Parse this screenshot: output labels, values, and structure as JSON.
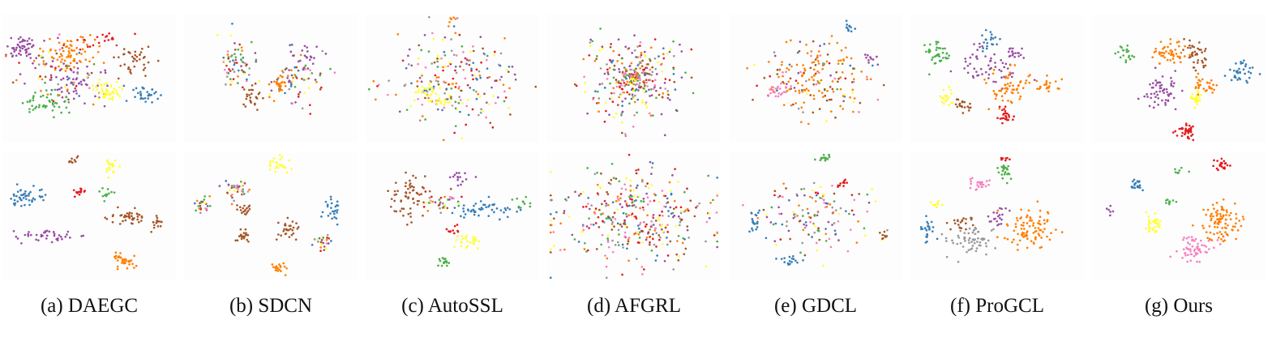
{
  "chart_data": {
    "type": "scatter",
    "title": "",
    "xlabel": "",
    "ylabel": "",
    "grid": false,
    "legend": "none",
    "rows": 2,
    "palette": [
      "#e41a1c",
      "#377eb8",
      "#4daf4a",
      "#984ea3",
      "#ff7f00",
      "#ffff33",
      "#a65628",
      "#f781bf",
      "#999999"
    ],
    "methods": [
      {
        "caption": "(a) DAEGC",
        "top": [
          [
            0.12,
            0.25,
            0.1,
            0.08,
            3,
            55
          ],
          [
            0.38,
            0.3,
            0.14,
            0.12,
            4,
            70
          ],
          [
            0.45,
            0.55,
            0.18,
            0.15,
            3,
            60
          ],
          [
            0.25,
            0.7,
            0.12,
            0.1,
            2,
            45
          ],
          [
            0.6,
            0.6,
            0.07,
            0.07,
            5,
            45
          ],
          [
            0.82,
            0.62,
            0.07,
            0.06,
            1,
            30
          ],
          [
            0.75,
            0.35,
            0.12,
            0.1,
            6,
            40
          ],
          [
            0.55,
            0.2,
            0.15,
            0.08,
            0,
            20
          ],
          [
            0.3,
            0.45,
            0.25,
            0.2,
            9,
            60
          ]
        ],
        "bottom": [
          [
            0.62,
            0.1,
            0.04,
            0.06,
            5,
            20
          ],
          [
            0.7,
            0.85,
            0.07,
            0.05,
            4,
            35
          ],
          [
            0.25,
            0.65,
            0.15,
            0.05,
            3,
            40
          ],
          [
            0.15,
            0.35,
            0.1,
            0.06,
            1,
            45
          ],
          [
            0.72,
            0.5,
            0.1,
            0.05,
            6,
            40
          ],
          [
            0.45,
            0.3,
            0.04,
            0.03,
            0,
            15
          ],
          [
            0.6,
            0.32,
            0.04,
            0.04,
            2,
            12
          ],
          [
            0.4,
            0.05,
            0.03,
            0.03,
            6,
            10
          ],
          [
            0.88,
            0.55,
            0.04,
            0.05,
            6,
            15
          ]
        ]
      },
      {
        "caption": "(b) SDCN",
        "top": [
          [
            0.3,
            0.4,
            0.12,
            0.18,
            9,
            70
          ],
          [
            0.65,
            0.5,
            0.14,
            0.2,
            9,
            70
          ],
          [
            0.4,
            0.65,
            0.06,
            0.1,
            6,
            25
          ],
          [
            0.7,
            0.35,
            0.06,
            0.1,
            3,
            20
          ],
          [
            0.55,
            0.55,
            0.05,
            0.08,
            4,
            25
          ]
        ],
        "bottom": [
          [
            0.55,
            0.1,
            0.06,
            0.06,
            5,
            25
          ],
          [
            0.3,
            0.3,
            0.08,
            0.08,
            9,
            40
          ],
          [
            0.1,
            0.4,
            0.05,
            0.06,
            9,
            25
          ],
          [
            0.35,
            0.65,
            0.05,
            0.06,
            6,
            20
          ],
          [
            0.6,
            0.6,
            0.06,
            0.06,
            6,
            30
          ],
          [
            0.85,
            0.45,
            0.06,
            0.07,
            1,
            25
          ],
          [
            0.8,
            0.7,
            0.05,
            0.07,
            9,
            25
          ],
          [
            0.55,
            0.9,
            0.04,
            0.04,
            4,
            18
          ],
          [
            0.35,
            0.45,
            0.04,
            0.04,
            6,
            18
          ]
        ]
      },
      {
        "caption": "(c) AutoSSL",
        "top": [
          [
            0.5,
            0.5,
            0.32,
            0.34,
            9,
            220
          ],
          [
            0.35,
            0.6,
            0.06,
            0.06,
            5,
            20
          ],
          [
            0.42,
            0.68,
            0.05,
            0.05,
            5,
            15
          ],
          [
            0.5,
            0.05,
            0.02,
            0.04,
            4,
            6
          ]
        ],
        "bottom": [
          [
            0.25,
            0.35,
            0.1,
            0.18,
            6,
            60
          ],
          [
            0.7,
            0.45,
            0.2,
            0.06,
            1,
            50
          ],
          [
            0.55,
            0.2,
            0.06,
            0.05,
            3,
            15
          ],
          [
            0.6,
            0.7,
            0.08,
            0.05,
            5,
            25
          ],
          [
            0.45,
            0.85,
            0.04,
            0.05,
            2,
            15
          ],
          [
            0.42,
            0.4,
            0.1,
            0.08,
            9,
            40
          ],
          [
            0.88,
            0.4,
            0.05,
            0.05,
            2,
            10
          ],
          [
            0.5,
            0.6,
            0.05,
            0.04,
            0,
            10
          ]
        ]
      },
      {
        "caption": "(d) AFGRL",
        "top": [
          [
            0.5,
            0.5,
            0.26,
            0.3,
            9,
            260
          ],
          [
            0.5,
            0.5,
            0.08,
            0.08,
            9,
            80
          ]
        ],
        "bottom": [
          [
            0.5,
            0.5,
            0.4,
            0.32,
            9,
            380
          ]
        ]
      },
      {
        "caption": "(e) GDCL",
        "top": [
          [
            0.5,
            0.5,
            0.3,
            0.25,
            9,
            80
          ],
          [
            0.5,
            0.5,
            0.28,
            0.22,
            4,
            90
          ],
          [
            0.5,
            0.5,
            0.3,
            0.25,
            6,
            25
          ],
          [
            0.7,
            0.1,
            0.03,
            0.04,
            1,
            12
          ],
          [
            0.28,
            0.6,
            0.06,
            0.05,
            7,
            20
          ],
          [
            0.82,
            0.35,
            0.04,
            0.04,
            3,
            10
          ]
        ],
        "bottom": [
          [
            0.5,
            0.5,
            0.28,
            0.24,
            9,
            140
          ],
          [
            0.55,
            0.05,
            0.04,
            0.04,
            2,
            15
          ],
          [
            0.35,
            0.85,
            0.06,
            0.04,
            1,
            15
          ],
          [
            0.15,
            0.55,
            0.03,
            0.08,
            1,
            20
          ],
          [
            0.88,
            0.65,
            0.03,
            0.03,
            6,
            8
          ],
          [
            0.65,
            0.25,
            0.04,
            0.03,
            0,
            10
          ]
        ]
      },
      {
        "caption": "(f) ProGCL",
        "top": [
          [
            0.15,
            0.3,
            0.06,
            0.1,
            2,
            40
          ],
          [
            0.45,
            0.4,
            0.2,
            0.15,
            3,
            60
          ],
          [
            0.55,
            0.55,
            0.12,
            0.12,
            4,
            60
          ],
          [
            0.45,
            0.2,
            0.06,
            0.06,
            1,
            20
          ],
          [
            0.2,
            0.65,
            0.04,
            0.06,
            5,
            20
          ],
          [
            0.3,
            0.7,
            0.05,
            0.06,
            6,
            20
          ],
          [
            0.55,
            0.8,
            0.04,
            0.06,
            0,
            25
          ],
          [
            0.8,
            0.55,
            0.07,
            0.04,
            4,
            20
          ],
          [
            0.6,
            0.3,
            0.06,
            0.04,
            3,
            15
          ]
        ],
        "bottom": [
          [
            0.7,
            0.6,
            0.15,
            0.15,
            4,
            90
          ],
          [
            0.35,
            0.7,
            0.12,
            0.1,
            8,
            60
          ],
          [
            0.4,
            0.25,
            0.06,
            0.05,
            7,
            25
          ],
          [
            0.55,
            0.15,
            0.04,
            0.06,
            2,
            25
          ],
          [
            0.1,
            0.6,
            0.04,
            0.08,
            1,
            25
          ],
          [
            0.3,
            0.55,
            0.06,
            0.06,
            6,
            20
          ],
          [
            0.5,
            0.5,
            0.06,
            0.08,
            3,
            20
          ],
          [
            0.15,
            0.4,
            0.04,
            0.04,
            5,
            10
          ],
          [
            0.55,
            0.05,
            0.03,
            0.03,
            0,
            8
          ]
        ]
      },
      {
        "caption": "(g) Ours",
        "top": [
          [
            0.2,
            0.3,
            0.05,
            0.05,
            2,
            20
          ],
          [
            0.4,
            0.6,
            0.08,
            0.12,
            3,
            60
          ],
          [
            0.45,
            0.3,
            0.1,
            0.08,
            4,
            50
          ],
          [
            0.6,
            0.3,
            0.06,
            0.1,
            6,
            40
          ],
          [
            0.85,
            0.45,
            0.06,
            0.08,
            1,
            35
          ],
          [
            0.6,
            0.65,
            0.04,
            0.05,
            5,
            25
          ],
          [
            0.55,
            0.9,
            0.05,
            0.05,
            0,
            35
          ],
          [
            0.65,
            0.55,
            0.08,
            0.08,
            4,
            30
          ]
        ],
        "bottom": [
          [
            0.75,
            0.1,
            0.04,
            0.04,
            0,
            20
          ],
          [
            0.25,
            0.25,
            0.04,
            0.06,
            1,
            20
          ],
          [
            0.5,
            0.15,
            0.03,
            0.03,
            2,
            8
          ],
          [
            0.35,
            0.55,
            0.04,
            0.08,
            5,
            35
          ],
          [
            0.6,
            0.75,
            0.12,
            0.08,
            7,
            60
          ],
          [
            0.75,
            0.55,
            0.1,
            0.15,
            4,
            90
          ],
          [
            0.1,
            0.45,
            0.02,
            0.03,
            3,
            6
          ],
          [
            0.45,
            0.4,
            0.03,
            0.04,
            2,
            10
          ]
        ]
      }
    ]
  }
}
